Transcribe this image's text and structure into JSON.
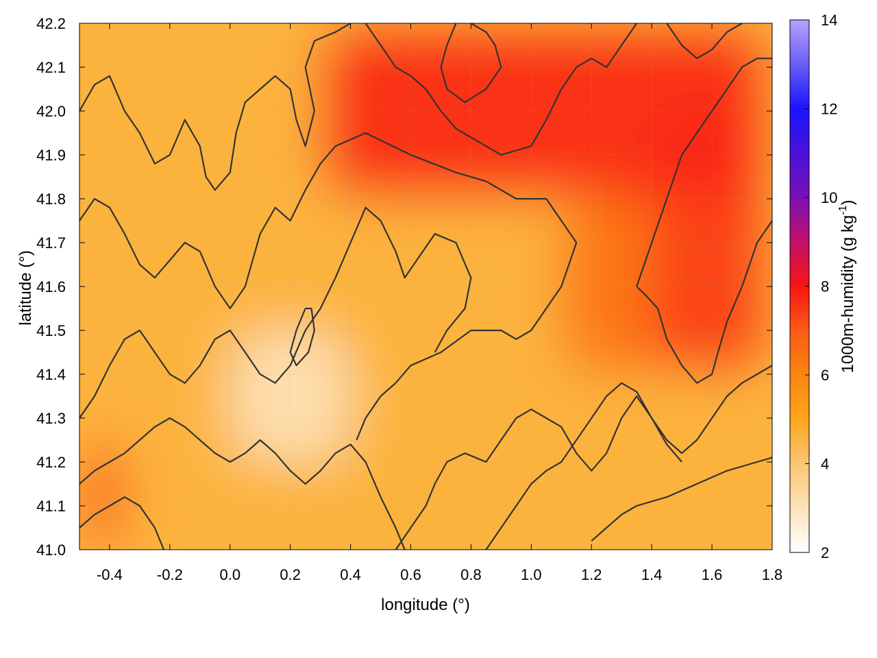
{
  "chart_data": {
    "type": "heatmap",
    "title": "",
    "xlabel": "longitude (°)",
    "ylabel": "latitude (°)",
    "xlim": [
      -0.5,
      1.8
    ],
    "ylim": [
      41.0,
      42.2
    ],
    "x_ticks": [
      "-0.4",
      "-0.2",
      "0.0",
      "0.2",
      "0.4",
      "0.6",
      "0.8",
      "1.0",
      "1.2",
      "1.4",
      "1.6",
      "1.8"
    ],
    "x_tick_values": [
      -0.4,
      -0.2,
      0.0,
      0.2,
      0.4,
      0.6,
      0.8,
      1.0,
      1.2,
      1.4,
      1.6,
      1.8
    ],
    "y_ticks": [
      "41.0",
      "41.1",
      "41.2",
      "41.3",
      "41.4",
      "41.5",
      "41.6",
      "41.7",
      "41.8",
      "41.9",
      "42.0",
      "42.1",
      "42.2"
    ],
    "y_tick_values": [
      41.0,
      41.1,
      41.2,
      41.3,
      41.4,
      41.5,
      41.6,
      41.7,
      41.8,
      41.9,
      42.0,
      42.1,
      42.2
    ],
    "grid": true,
    "colorbar": {
      "label_main": "1000m-humidity (g kg",
      "label_sup": "-1",
      "label_end": ")",
      "range": [
        2,
        14
      ],
      "ticks": [
        "2",
        "4",
        "6",
        "8",
        "10",
        "12",
        "14"
      ],
      "tick_values": [
        2,
        4,
        6,
        8,
        10,
        12,
        14
      ],
      "colors": [
        {
          "value": 2,
          "color": "#ffffff"
        },
        {
          "value": 4,
          "color": "#fbc674"
        },
        {
          "value": 5,
          "color": "#fda61a"
        },
        {
          "value": 6,
          "color": "#fd8513"
        },
        {
          "value": 7,
          "color": "#fc5a17"
        },
        {
          "value": 8,
          "color": "#f91512"
        },
        {
          "value": 9,
          "color": "#c0106c"
        },
        {
          "value": 10,
          "color": "#7a0fb5"
        },
        {
          "value": 12,
          "color": "#1a14ff"
        },
        {
          "value": 13,
          "color": "#6a5cf5"
        },
        {
          "value": 14,
          "color": "#b7a2ff"
        }
      ]
    },
    "field_regions": [
      {
        "name": "north-moist-band",
        "value": 7.8,
        "lon": [
          0.3,
          1.8
        ],
        "lat": [
          41.8,
          42.2
        ]
      },
      {
        "name": "northeast-moist",
        "value": 7.5,
        "lon": [
          1.4,
          1.8
        ],
        "lat": [
          41.4,
          42.0
        ]
      },
      {
        "name": "central-east-moist",
        "value": 6.5,
        "lon": [
          1.1,
          1.5
        ],
        "lat": [
          41.4,
          41.8
        ]
      },
      {
        "name": "southwest-moist",
        "value": 7.0,
        "lon": [
          -0.5,
          -0.35
        ],
        "lat": [
          41.0,
          41.25
        ]
      },
      {
        "name": "central-dry",
        "value": 3.0,
        "lon": [
          0.0,
          0.4
        ],
        "lat": [
          41.2,
          41.5
        ]
      },
      {
        "name": "background",
        "value": 4.6,
        "lon": [
          -0.5,
          1.8
        ],
        "lat": [
          41.0,
          42.2
        ]
      }
    ],
    "contours": {
      "color": "#333333",
      "label": "",
      "lines": [
        [
          [
            -0.5,
            42.0
          ],
          [
            -0.45,
            42.06
          ],
          [
            -0.4,
            42.08
          ],
          [
            -0.35,
            42.0
          ],
          [
            -0.3,
            41.95
          ],
          [
            -0.25,
            41.88
          ],
          [
            -0.2,
            41.9
          ],
          [
            -0.15,
            41.98
          ],
          [
            -0.1,
            41.92
          ],
          [
            -0.08,
            41.85
          ],
          [
            -0.05,
            41.82
          ],
          [
            0.0,
            41.86
          ],
          [
            0.02,
            41.95
          ],
          [
            0.05,
            42.02
          ],
          [
            0.1,
            42.05
          ],
          [
            0.15,
            42.08
          ],
          [
            0.2,
            42.05
          ],
          [
            0.22,
            41.98
          ],
          [
            0.25,
            41.92
          ],
          [
            0.28,
            42.0
          ],
          [
            0.25,
            42.1
          ],
          [
            0.28,
            42.16
          ],
          [
            0.35,
            42.18
          ],
          [
            0.4,
            42.2
          ]
        ],
        [
          [
            -0.5,
            41.75
          ],
          [
            -0.45,
            41.8
          ],
          [
            -0.4,
            41.78
          ],
          [
            -0.35,
            41.72
          ],
          [
            -0.3,
            41.65
          ],
          [
            -0.25,
            41.62
          ],
          [
            -0.2,
            41.66
          ],
          [
            -0.15,
            41.7
          ],
          [
            -0.1,
            41.68
          ],
          [
            -0.05,
            41.6
          ],
          [
            0.0,
            41.55
          ],
          [
            0.05,
            41.6
          ],
          [
            0.1,
            41.72
          ],
          [
            0.15,
            41.78
          ],
          [
            0.2,
            41.75
          ],
          [
            0.25,
            41.82
          ],
          [
            0.3,
            41.88
          ],
          [
            0.35,
            41.92
          ],
          [
            0.45,
            41.95
          ],
          [
            0.6,
            41.9
          ],
          [
            0.75,
            41.86
          ],
          [
            0.85,
            41.84
          ],
          [
            0.95,
            41.8
          ],
          [
            1.05,
            41.8
          ],
          [
            1.1,
            41.75
          ],
          [
            1.15,
            41.7
          ],
          [
            1.1,
            41.6
          ],
          [
            1.05,
            41.55
          ],
          [
            1.0,
            41.5
          ],
          [
            0.95,
            41.48
          ],
          [
            0.9,
            41.5
          ],
          [
            0.8,
            41.5
          ],
          [
            0.7,
            41.45
          ],
          [
            0.6,
            41.42
          ],
          [
            0.55,
            41.38
          ],
          [
            0.5,
            41.35
          ],
          [
            0.45,
            41.3
          ],
          [
            0.42,
            41.25
          ]
        ],
        [
          [
            -0.5,
            41.3
          ],
          [
            -0.45,
            41.35
          ],
          [
            -0.4,
            41.42
          ],
          [
            -0.35,
            41.48
          ],
          [
            -0.3,
            41.5
          ],
          [
            -0.25,
            41.45
          ],
          [
            -0.2,
            41.4
          ],
          [
            -0.15,
            41.38
          ],
          [
            -0.1,
            41.42
          ],
          [
            -0.05,
            41.48
          ],
          [
            0.0,
            41.5
          ],
          [
            0.05,
            41.45
          ],
          [
            0.1,
            41.4
          ],
          [
            0.15,
            41.38
          ],
          [
            0.2,
            41.42
          ],
          [
            0.25,
            41.5
          ],
          [
            0.3,
            41.55
          ],
          [
            0.35,
            41.62
          ],
          [
            0.4,
            41.7
          ],
          [
            0.45,
            41.78
          ],
          [
            0.5,
            41.75
          ],
          [
            0.55,
            41.68
          ],
          [
            0.58,
            41.62
          ],
          [
            0.62,
            41.66
          ],
          [
            0.68,
            41.72
          ],
          [
            0.75,
            41.7
          ],
          [
            0.8,
            41.62
          ],
          [
            0.78,
            41.55
          ],
          [
            0.72,
            41.5
          ],
          [
            0.68,
            41.45
          ]
        ],
        [
          [
            -0.5,
            41.15
          ],
          [
            -0.45,
            41.18
          ],
          [
            -0.4,
            41.2
          ],
          [
            -0.35,
            41.22
          ],
          [
            -0.3,
            41.25
          ],
          [
            -0.25,
            41.28
          ],
          [
            -0.2,
            41.3
          ],
          [
            -0.15,
            41.28
          ],
          [
            -0.1,
            41.25
          ],
          [
            -0.05,
            41.22
          ],
          [
            0.0,
            41.2
          ],
          [
            0.05,
            41.22
          ],
          [
            0.1,
            41.25
          ],
          [
            0.15,
            41.22
          ],
          [
            0.2,
            41.18
          ],
          [
            0.25,
            41.15
          ],
          [
            0.3,
            41.18
          ],
          [
            0.35,
            41.22
          ],
          [
            0.4,
            41.24
          ],
          [
            0.45,
            41.2
          ],
          [
            0.5,
            41.12
          ],
          [
            0.55,
            41.05
          ],
          [
            0.58,
            41.0
          ]
        ],
        [
          [
            -0.5,
            41.05
          ],
          [
            -0.45,
            41.08
          ],
          [
            -0.4,
            41.1
          ],
          [
            -0.35,
            41.12
          ],
          [
            -0.3,
            41.1
          ],
          [
            -0.25,
            41.05
          ],
          [
            -0.22,
            41.0
          ]
        ],
        [
          [
            0.55,
            41.0
          ],
          [
            0.6,
            41.05
          ],
          [
            0.65,
            41.1
          ],
          [
            0.68,
            41.15
          ],
          [
            0.72,
            41.2
          ],
          [
            0.78,
            41.22
          ],
          [
            0.85,
            41.2
          ],
          [
            0.9,
            41.25
          ],
          [
            0.95,
            41.3
          ],
          [
            1.0,
            41.32
          ],
          [
            1.05,
            41.3
          ],
          [
            1.1,
            41.28
          ],
          [
            1.15,
            41.22
          ],
          [
            1.2,
            41.18
          ],
          [
            1.25,
            41.22
          ],
          [
            1.3,
            41.3
          ],
          [
            1.35,
            41.35
          ],
          [
            1.4,
            41.3
          ],
          [
            1.45,
            41.25
          ],
          [
            1.5,
            41.22
          ],
          [
            1.55,
            41.25
          ],
          [
            1.6,
            41.3
          ],
          [
            1.65,
            41.35
          ],
          [
            1.7,
            41.38
          ],
          [
            1.75,
            41.4
          ],
          [
            1.8,
            41.42
          ]
        ],
        [
          [
            0.85,
            41.0
          ],
          [
            0.9,
            41.05
          ],
          [
            0.95,
            41.1
          ],
          [
            1.0,
            41.15
          ],
          [
            1.05,
            41.18
          ],
          [
            1.1,
            41.2
          ],
          [
            1.15,
            41.25
          ],
          [
            1.2,
            41.3
          ],
          [
            1.25,
            41.35
          ],
          [
            1.3,
            41.38
          ],
          [
            1.35,
            41.36
          ],
          [
            1.4,
            41.3
          ],
          [
            1.45,
            41.24
          ],
          [
            1.5,
            41.2
          ]
        ],
        [
          [
            1.2,
            41.02
          ],
          [
            1.25,
            41.05
          ],
          [
            1.3,
            41.08
          ],
          [
            1.35,
            41.1
          ],
          [
            1.45,
            41.12
          ],
          [
            1.55,
            41.15
          ],
          [
            1.65,
            41.18
          ],
          [
            1.75,
            41.2
          ],
          [
            1.8,
            41.21
          ]
        ],
        [
          [
            1.35,
            41.6
          ],
          [
            1.4,
            41.7
          ],
          [
            1.45,
            41.8
          ],
          [
            1.5,
            41.9
          ],
          [
            1.55,
            41.95
          ],
          [
            1.6,
            42.0
          ],
          [
            1.65,
            42.05
          ],
          [
            1.7,
            42.1
          ],
          [
            1.75,
            42.12
          ],
          [
            1.8,
            42.12
          ]
        ],
        [
          [
            1.8,
            41.75
          ],
          [
            1.75,
            41.7
          ],
          [
            1.7,
            41.6
          ],
          [
            1.65,
            41.52
          ],
          [
            1.62,
            41.45
          ],
          [
            1.6,
            41.4
          ],
          [
            1.55,
            41.38
          ],
          [
            1.5,
            41.42
          ],
          [
            1.45,
            41.48
          ],
          [
            1.42,
            41.55
          ],
          [
            1.38,
            41.58
          ],
          [
            1.35,
            41.6
          ]
        ],
        [
          [
            0.75,
            42.2
          ],
          [
            0.72,
            42.15
          ],
          [
            0.7,
            42.1
          ],
          [
            0.72,
            42.05
          ],
          [
            0.78,
            42.02
          ],
          [
            0.85,
            42.05
          ],
          [
            0.9,
            42.1
          ],
          [
            0.88,
            42.15
          ],
          [
            0.85,
            42.18
          ],
          [
            0.8,
            42.2
          ]
        ],
        [
          [
            0.45,
            42.2
          ],
          [
            0.5,
            42.15
          ],
          [
            0.55,
            42.1
          ],
          [
            0.6,
            42.08
          ],
          [
            0.65,
            42.05
          ],
          [
            0.7,
            42.0
          ],
          [
            0.75,
            41.96
          ],
          [
            0.8,
            41.94
          ],
          [
            0.85,
            41.92
          ],
          [
            0.9,
            41.9
          ],
          [
            1.0,
            41.92
          ],
          [
            1.05,
            41.98
          ],
          [
            1.1,
            42.05
          ],
          [
            1.15,
            42.1
          ],
          [
            1.2,
            42.12
          ],
          [
            1.25,
            42.1
          ],
          [
            1.3,
            42.15
          ],
          [
            1.35,
            42.2
          ]
        ],
        [
          [
            1.45,
            42.2
          ],
          [
            1.5,
            42.15
          ],
          [
            1.55,
            42.12
          ],
          [
            1.6,
            42.14
          ],
          [
            1.65,
            42.18
          ],
          [
            1.7,
            42.2
          ]
        ],
        [
          [
            0.25,
            41.55
          ],
          [
            0.22,
            41.5
          ],
          [
            0.2,
            41.45
          ],
          [
            0.22,
            41.42
          ],
          [
            0.26,
            41.45
          ],
          [
            0.28,
            41.5
          ],
          [
            0.27,
            41.55
          ],
          [
            0.25,
            41.55
          ]
        ]
      ]
    }
  }
}
